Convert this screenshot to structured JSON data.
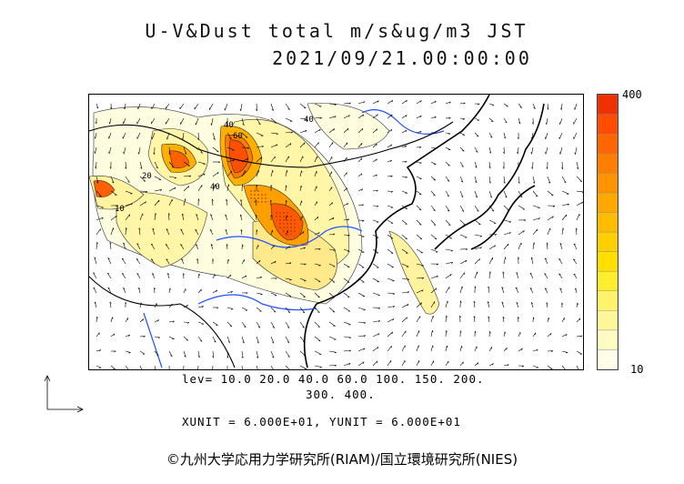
{
  "header": {
    "title_line1": "U-V&Dust total m/s&ug/m3 JST",
    "title_line2": "2021/09/21.00:00:00"
  },
  "colorbar": {
    "max_label": "400",
    "min_label": "10",
    "colors": [
      "#fffde8",
      "#fffbc2",
      "#fff79a",
      "#fff36a",
      "#ffee2e",
      "#ffe000",
      "#ffd000",
      "#ffbc00",
      "#ffa800",
      "#ff9400",
      "#ff7e00",
      "#ff6600",
      "#ff4c00",
      "#f03000"
    ]
  },
  "legend": {
    "levels_line1": "lev= 10.0 20.0 40.0 60.0 100. 150. 200.",
    "levels_line2": "300. 400.",
    "units_line": "XUNIT = 6.000E+01, YUNIT = 6.000E+01"
  },
  "footer": {
    "credit": "©九州大学応用力学研究所(RIAM)/国立環境研究所(NIES)"
  },
  "map": {
    "contour_labels": [
      "40",
      "60",
      "40",
      "20",
      "10",
      "40"
    ]
  }
}
